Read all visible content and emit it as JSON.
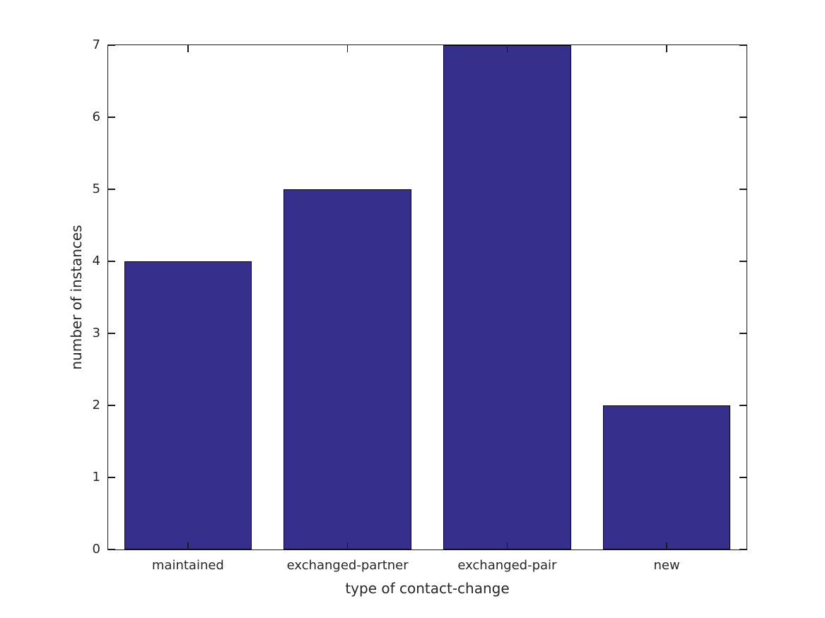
{
  "figure": {
    "background_color": "#ffffff",
    "axis_line_color": "#1a1a1a",
    "text_color": "#262626"
  },
  "chart_data": {
    "type": "bar",
    "title": "",
    "categories": [
      "maintained",
      "exchanged-partner",
      "exchanged-pair",
      "new"
    ],
    "values": [
      4,
      5,
      7,
      2
    ],
    "xlabel": "type of contact-change",
    "ylabel": "number of instances",
    "ylim": [
      0,
      7
    ],
    "yticks": [
      0,
      1,
      2,
      3,
      4,
      5,
      6,
      7
    ],
    "bar_color": "#372F8C",
    "bar_edge_color": "#050510",
    "bar_width_fraction": 0.8,
    "grid": false,
    "legend": null,
    "tick_direction": "in",
    "ticks_all_sides": true
  }
}
